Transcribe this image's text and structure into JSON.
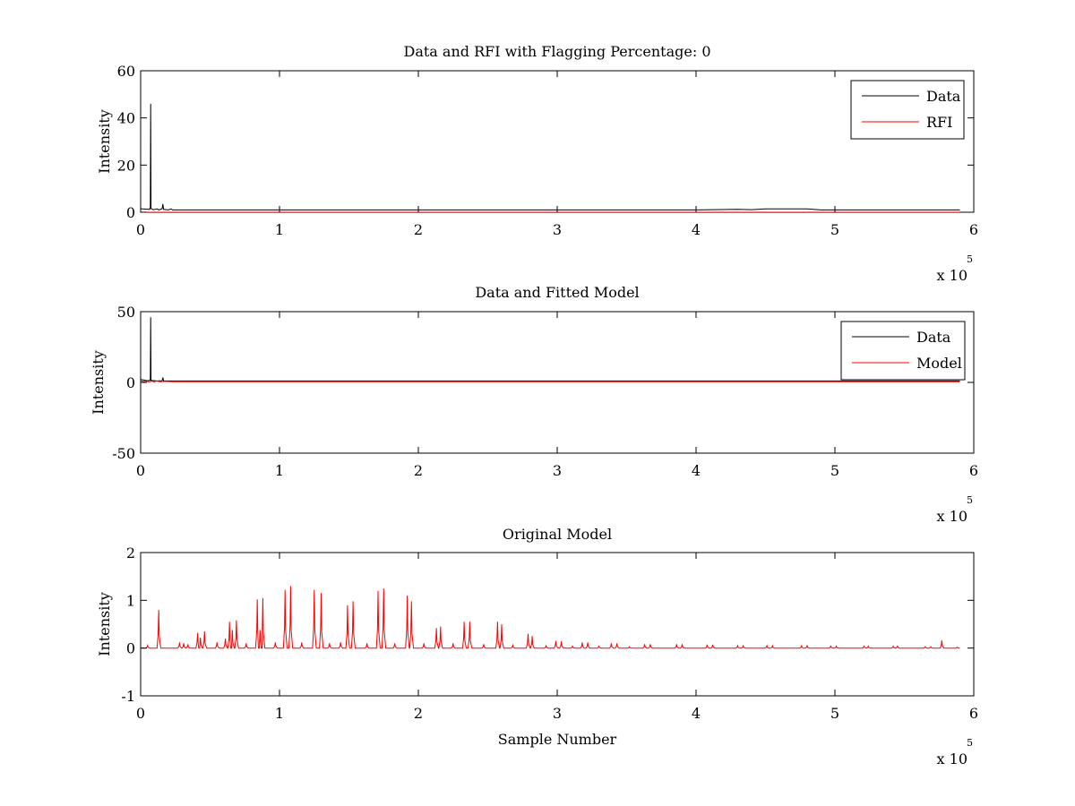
{
  "charts": [
    {
      "title": "Data and RFI with Flagging Percentage: 0",
      "ylabel": "Intensity",
      "xlabel": "",
      "ylim": [
        0,
        60
      ],
      "yticks": [
        "0",
        "20",
        "40",
        "60"
      ],
      "legend": [
        {
          "label": "Data",
          "color": "#000000"
        },
        {
          "label": "RFI",
          "color": "#ff0000"
        }
      ]
    },
    {
      "title": "Data and Fitted Model",
      "ylabel": "Intensity",
      "xlabel": "",
      "ylim": [
        -50,
        50
      ],
      "yticks": [
        "-50",
        "0",
        "50"
      ],
      "legend": [
        {
          "label": "Data",
          "color": "#000000"
        },
        {
          "label": "Model",
          "color": "#ff0000"
        }
      ]
    },
    {
      "title": "Original Model",
      "ylabel": "Intensity",
      "xlabel": "Sample Number",
      "ylim": [
        -1,
        2
      ],
      "yticks": [
        "-1",
        "0",
        "1",
        "2"
      ],
      "legend": []
    }
  ],
  "x_axis": {
    "ticks": [
      "0",
      "1",
      "2",
      "3",
      "4",
      "5",
      "6"
    ],
    "multiplier_base": "x 10",
    "multiplier_exp": "5"
  },
  "chart_data": [
    {
      "type": "line",
      "title": "Data and RFI with Flagging Percentage: 0",
      "xlabel": "",
      "ylabel": "Intensity",
      "xlim": [
        0,
        600000
      ],
      "ylim": [
        0,
        60
      ],
      "grid": false,
      "legend_position": "top-right",
      "series": [
        {
          "name": "Data",
          "color": "#000000",
          "points": [
            [
              0,
              1.5
            ],
            [
              5000,
              1.3
            ],
            [
              6500,
              1.2
            ],
            [
              7000,
              2
            ],
            [
              7200,
              46
            ],
            [
              7500,
              1.6
            ],
            [
              9000,
              1.1
            ],
            [
              12000,
              1.4
            ],
            [
              13000,
              1
            ],
            [
              15500,
              1.5
            ],
            [
              16000,
              3.5
            ],
            [
              16500,
              1.2
            ],
            [
              20000,
              1
            ],
            [
              22000,
              1.4
            ],
            [
              23000,
              1
            ],
            [
              60000,
              1
            ],
            [
              100000,
              1
            ],
            [
              150000,
              1
            ],
            [
              200000,
              1
            ],
            [
              250000,
              1
            ],
            [
              300000,
              1
            ],
            [
              350000,
              1
            ],
            [
              400000,
              1
            ],
            [
              430000,
              1.2
            ],
            [
              440000,
              1.1
            ],
            [
              450000,
              1.4
            ],
            [
              480000,
              1.4
            ],
            [
              490000,
              1
            ],
            [
              500000,
              1
            ],
            [
              550000,
              1
            ],
            [
              590000,
              1
            ]
          ]
        },
        {
          "name": "RFI",
          "color": "#ff0000",
          "points": [
            [
              0,
              0
            ],
            [
              590000,
              0
            ]
          ]
        }
      ]
    },
    {
      "type": "line",
      "title": "Data and Fitted Model",
      "xlabel": "",
      "ylabel": "Intensity",
      "xlim": [
        0,
        600000
      ],
      "ylim": [
        -50,
        50
      ],
      "grid": false,
      "legend_position": "top-right",
      "series": [
        {
          "name": "Data",
          "color": "#000000",
          "points": [
            [
              0,
              2
            ],
            [
              5000,
              1.2
            ],
            [
              7000,
              1.5
            ],
            [
              7200,
              46
            ],
            [
              7500,
              1.4
            ],
            [
              12000,
              1
            ],
            [
              15500,
              1.2
            ],
            [
              16000,
              3.5
            ],
            [
              16500,
              1.1
            ],
            [
              20000,
              1
            ],
            [
              100000,
              1
            ],
            [
              200000,
              1
            ],
            [
              300000,
              1
            ],
            [
              400000,
              1
            ],
            [
              500000,
              1
            ],
            [
              590000,
              1
            ]
          ]
        },
        {
          "name": "Model",
          "color": "#ff0000",
          "points": [
            [
              0,
              1.2
            ],
            [
              2000,
              0.6
            ],
            [
              4000,
              0.9
            ],
            [
              6000,
              0.4
            ],
            [
              8000,
              0.8
            ],
            [
              10000,
              0.3
            ],
            [
              11000,
              1
            ],
            [
              14000,
              0.5
            ],
            [
              18000,
              0.7
            ],
            [
              22000,
              0.5
            ],
            [
              100000,
              0.5
            ],
            [
              300000,
              0.5
            ],
            [
              590000,
              0.5
            ]
          ]
        }
      ]
    },
    {
      "type": "line",
      "title": "Original Model",
      "xlabel": "Sample Number",
      "ylabel": "Intensity",
      "xlim": [
        0,
        600000
      ],
      "ylim": [
        -1,
        2
      ],
      "grid": false,
      "legend_position": "none",
      "series": [
        {
          "name": "",
          "color": "#ff0000",
          "peaks": [
            [
              5000,
              0.06
            ],
            [
              13000,
              0.8
            ],
            [
              28000,
              0.12
            ],
            [
              31000,
              0.1
            ],
            [
              34000,
              0.08
            ],
            [
              41000,
              0.32
            ],
            [
              43000,
              0.22
            ],
            [
              46000,
              0.35
            ],
            [
              55000,
              0.12
            ],
            [
              61000,
              0.2
            ],
            [
              64000,
              0.55
            ],
            [
              66000,
              0.38
            ],
            [
              69000,
              0.58
            ],
            [
              76000,
              0.1
            ],
            [
              84000,
              1.02
            ],
            [
              86000,
              0.38
            ],
            [
              88000,
              1.05
            ],
            [
              97000,
              0.12
            ],
            [
              104000,
              1.22
            ],
            [
              108000,
              1.3
            ],
            [
              116000,
              0.12
            ],
            [
              125000,
              1.22
            ],
            [
              130000,
              1.15
            ],
            [
              136000,
              0.1
            ],
            [
              144000,
              0.12
            ],
            [
              149000,
              0.9
            ],
            [
              153000,
              0.98
            ],
            [
              163000,
              0.1
            ],
            [
              171000,
              1.2
            ],
            [
              175000,
              1.25
            ],
            [
              183000,
              0.1
            ],
            [
              192000,
              1.1
            ],
            [
              195000,
              0.98
            ],
            [
              204000,
              0.1
            ],
            [
              213000,
              0.42
            ],
            [
              216000,
              0.45
            ],
            [
              225000,
              0.1
            ],
            [
              233000,
              0.55
            ],
            [
              237000,
              0.55
            ],
            [
              247000,
              0.08
            ],
            [
              257000,
              0.55
            ],
            [
              260000,
              0.5
            ],
            [
              268000,
              0.06
            ],
            [
              279000,
              0.3
            ],
            [
              282000,
              0.25
            ],
            [
              292000,
              0.05
            ],
            [
              299000,
              0.15
            ],
            [
              303000,
              0.14
            ],
            [
              311000,
              0.04
            ],
            [
              318000,
              0.12
            ],
            [
              322000,
              0.12
            ],
            [
              330000,
              0.04
            ],
            [
              339000,
              0.1
            ],
            [
              343000,
              0.1
            ],
            [
              352000,
              0.03
            ],
            [
              363000,
              0.08
            ],
            [
              367000,
              0.08
            ],
            [
              386000,
              0.08
            ],
            [
              390000,
              0.08
            ],
            [
              408000,
              0.07
            ],
            [
              412000,
              0.07
            ],
            [
              430000,
              0.05
            ],
            [
              434000,
              0.05
            ],
            [
              451000,
              0.05
            ],
            [
              455000,
              0.05
            ],
            [
              476000,
              0.05
            ],
            [
              480000,
              0.05
            ],
            [
              497000,
              0.04
            ],
            [
              501000,
              0.04
            ],
            [
              521000,
              0.04
            ],
            [
              524000,
              0.04
            ],
            [
              542000,
              0.04
            ],
            [
              545000,
              0.04
            ],
            [
              565000,
              0.03
            ],
            [
              569000,
              0.03
            ],
            [
              577000,
              0.16
            ],
            [
              588000,
              0.02
            ]
          ],
          "points": [
            [
              0,
              0
            ],
            [
              590000,
              0
            ]
          ]
        }
      ]
    }
  ]
}
